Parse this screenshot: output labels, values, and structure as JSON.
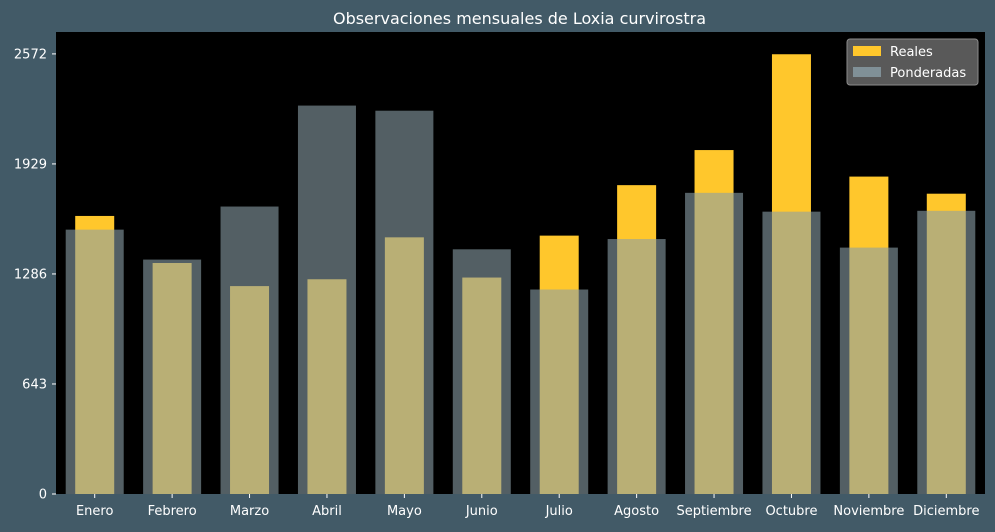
{
  "chart_data": {
    "type": "bar",
    "title": "Observaciones mensuales de Loxia curvirostra",
    "xlabel": "",
    "ylabel": "",
    "categories": [
      "Enero",
      "Febrero",
      "Marzo",
      "Abril",
      "Mayo",
      "Junio",
      "Julio",
      "Agosto",
      "Septiembre",
      "Octubre",
      "Noviembre",
      "Diciembre"
    ],
    "series": [
      {
        "name": "Reales",
        "color": "#ffc72c",
        "values": [
          1625,
          1350,
          1215,
          1255,
          1500,
          1265,
          1510,
          1805,
          2010,
          2570,
          1855,
          1755
        ]
      },
      {
        "name": "Ponderadas",
        "color": "#8a9ea6",
        "values": [
          1545,
          1370,
          1680,
          2270,
          2240,
          1430,
          1195,
          1490,
          1760,
          1650,
          1440,
          1655
        ]
      }
    ],
    "yticks": [
      0,
      643,
      1286,
      1929,
      2572
    ],
    "ytick_labels": [
      "0",
      "643",
      "1286",
      "1929",
      "2572"
    ],
    "ylim": [
      0,
      2700
    ],
    "grid": false,
    "legend_position": "top-right",
    "background": "#000000",
    "figure_background": "#425a67",
    "text_color": "#ffffff",
    "overlap_color": "#d6d08a",
    "legend_background": "#595959"
  }
}
